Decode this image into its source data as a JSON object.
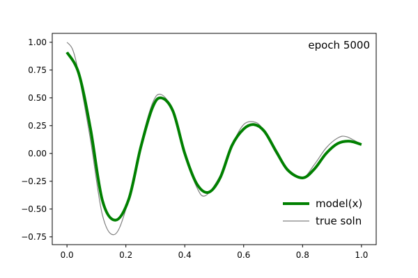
{
  "chart_data": {
    "type": "line",
    "title": "",
    "xlabel": "",
    "ylabel": "",
    "xlim": [
      -0.05,
      1.05
    ],
    "ylim": [
      -0.82,
      1.08
    ],
    "grid": false,
    "legend_position": "bottom-right",
    "annotation": "epoch 5000",
    "x_ticks": [
      0.0,
      0.2,
      0.4,
      0.6,
      0.8,
      1.0
    ],
    "x_tick_labels": [
      "0.0",
      "0.2",
      "0.4",
      "0.6",
      "0.8",
      "1.0"
    ],
    "y_ticks": [
      1.0,
      0.75,
      0.5,
      0.25,
      0.0,
      -0.25,
      -0.5,
      -0.75
    ],
    "y_tick_labels": [
      "1.00",
      "0.75",
      "0.50",
      "0.25",
      "0.00",
      "−0.25",
      "−0.50",
      "−0.75"
    ],
    "series": [
      {
        "name": "model(x)",
        "color": "#008000",
        "x": [
          0.0,
          0.04,
          0.08,
          0.12,
          0.165,
          0.21,
          0.25,
          0.29,
          0.32,
          0.36,
          0.4,
          0.44,
          0.48,
          0.52,
          0.56,
          0.6,
          0.635,
          0.67,
          0.71,
          0.75,
          0.8,
          0.84,
          0.88,
          0.92,
          0.96,
          1.0
        ],
        "y": [
          0.91,
          0.72,
          0.22,
          -0.42,
          -0.6,
          -0.41,
          0.05,
          0.41,
          0.5,
          0.38,
          0.0,
          -0.27,
          -0.35,
          -0.22,
          0.07,
          0.22,
          0.26,
          0.2,
          0.02,
          -0.15,
          -0.22,
          -0.14,
          0.0,
          0.09,
          0.11,
          0.08
        ]
      },
      {
        "name": "true soln",
        "color": "#808080",
        "x": [
          0.0,
          0.02,
          0.04,
          0.08,
          0.12,
          0.16,
          0.2,
          0.25,
          0.29,
          0.32,
          0.36,
          0.4,
          0.44,
          0.47,
          0.52,
          0.56,
          0.6,
          0.64,
          0.67,
          0.71,
          0.75,
          0.8,
          0.84,
          0.88,
          0.92,
          0.95,
          1.0
        ],
        "y": [
          1.0,
          0.93,
          0.71,
          0.12,
          -0.55,
          -0.73,
          -0.5,
          0.08,
          0.45,
          0.53,
          0.38,
          0.0,
          -0.3,
          -0.38,
          -0.2,
          0.07,
          0.26,
          0.28,
          0.2,
          0.0,
          -0.15,
          -0.22,
          -0.1,
          0.05,
          0.14,
          0.15,
          0.08
        ]
      }
    ]
  }
}
